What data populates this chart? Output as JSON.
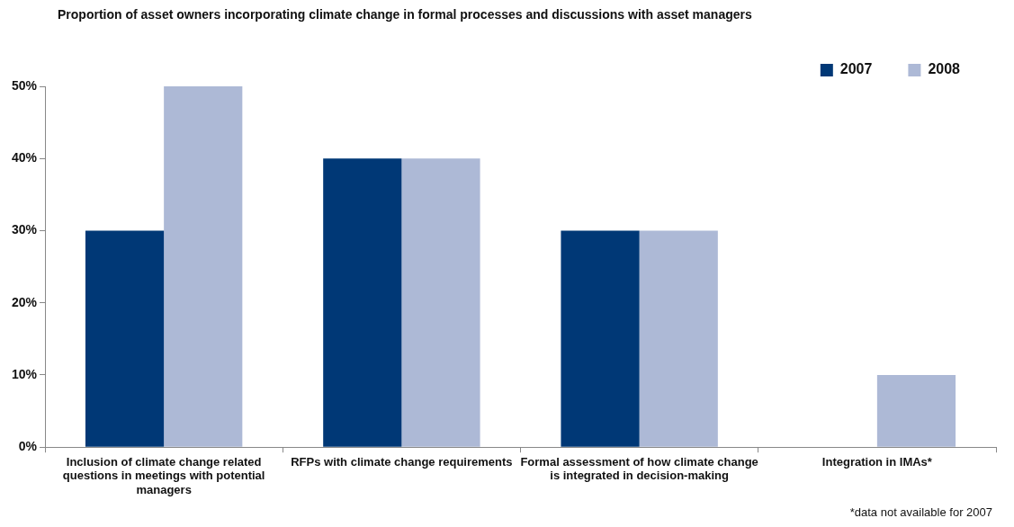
{
  "chart_data": {
    "type": "bar",
    "title": "Proportion of asset owners incorporating climate change in formal processes and discussions with asset managers",
    "categories": [
      "Inclusion of climate change related questions in meetings with potential managers",
      "RFPs with climate change requirements",
      "Formal assessment of how climate change is integrated in decision-making",
      "Integration in IMAs*"
    ],
    "series": [
      {
        "name": "2007",
        "color": "#003876",
        "values": [
          30,
          40,
          30,
          null
        ]
      },
      {
        "name": "2008",
        "color": "#adb9d6",
        "values": [
          50,
          40,
          30,
          10
        ]
      }
    ],
    "ylim": [
      0,
      50
    ],
    "yticks": [
      {
        "value": 0,
        "label": "0%"
      },
      {
        "value": 10,
        "label": "10%"
      },
      {
        "value": 20,
        "label": "20%"
      },
      {
        "value": 30,
        "label": "30%"
      },
      {
        "value": 40,
        "label": "40%"
      },
      {
        "value": 50,
        "label": "50%"
      }
    ],
    "grid": false,
    "legend": "top right",
    "annotations": [
      "*data not available for 2007"
    ]
  }
}
